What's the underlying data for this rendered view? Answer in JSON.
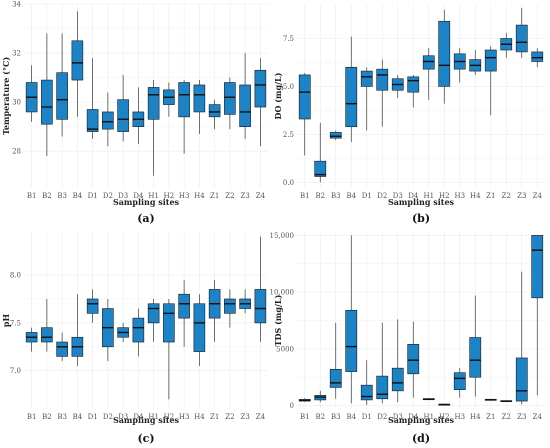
{
  "chart_data": [
    {
      "type": "box",
      "panel_label": "(a)",
      "xlabel": "Sampling sites",
      "ylabel": "Temperature (°C)",
      "ylim": [
        26.5,
        34
      ],
      "yticks": [
        28,
        30,
        32,
        34
      ],
      "ytick_labels": [
        "28",
        "30",
        "32",
        "34"
      ],
      "grid": true,
      "categories": [
        "B1",
        "B2",
        "B3",
        "B4",
        "D1",
        "D2",
        "D3",
        "D4",
        "H1",
        "H2",
        "H3",
        "H4",
        "Z1",
        "Z2",
        "Z3",
        "Z4"
      ],
      "boxes": [
        {
          "min": 29.2,
          "q1": 29.6,
          "median": 30.2,
          "q3": 30.8,
          "max": 31.5
        },
        {
          "min": 27.8,
          "q1": 29.1,
          "median": 29.8,
          "q3": 30.9,
          "max": 32.8
        },
        {
          "min": 28.6,
          "q1": 29.3,
          "median": 30.1,
          "q3": 31.2,
          "max": 32.8
        },
        {
          "min": 29.4,
          "q1": 30.9,
          "median": 31.6,
          "q3": 32.5,
          "max": 33.7
        },
        {
          "min": 28.5,
          "q1": 28.8,
          "median": 28.9,
          "q3": 29.7,
          "max": 31.8
        },
        {
          "min": 28.2,
          "q1": 28.9,
          "median": 29.2,
          "q3": 29.6,
          "max": 30.4
        },
        {
          "min": 28.4,
          "q1": 28.8,
          "median": 29.3,
          "q3": 30.1,
          "max": 31.1
        },
        {
          "min": 28.3,
          "q1": 29.0,
          "median": 29.3,
          "q3": 29.6,
          "max": 30.6
        },
        {
          "min": 27.0,
          "q1": 29.3,
          "median": 30.3,
          "q3": 30.6,
          "max": 30.9
        },
        {
          "min": 29.4,
          "q1": 29.9,
          "median": 30.2,
          "q3": 30.5,
          "max": 30.8
        },
        {
          "min": 27.9,
          "q1": 29.4,
          "median": 30.3,
          "q3": 30.8,
          "max": 30.9
        },
        {
          "min": 28.7,
          "q1": 29.6,
          "median": 30.3,
          "q3": 30.7,
          "max": 30.9
        },
        {
          "min": 28.9,
          "q1": 29.4,
          "median": 29.6,
          "q3": 29.9,
          "max": 30.1
        },
        {
          "min": 28.9,
          "q1": 29.5,
          "median": 30.2,
          "q3": 30.8,
          "max": 31.0
        },
        {
          "min": 28.5,
          "q1": 29.0,
          "median": 29.6,
          "q3": 30.7,
          "max": 32.0
        },
        {
          "min": 28.2,
          "q1": 29.8,
          "median": 30.7,
          "q3": 31.3,
          "max": 31.8
        }
      ]
    },
    {
      "type": "box",
      "panel_label": "(b)",
      "xlabel": "Sampling sites",
      "ylabel": "DO (mg/L)",
      "ylim": [
        -0.3,
        9.3
      ],
      "yticks": [
        0,
        2.5,
        5,
        7.5
      ],
      "ytick_labels": [
        "0.0",
        "2.5",
        "5.0",
        "7.5"
      ],
      "grid": true,
      "categories": [
        "B1",
        "B2",
        "B3",
        "B4",
        "D1",
        "D2",
        "D3",
        "D4",
        "H1",
        "H2",
        "H3",
        "H4",
        "Z1",
        "Z2",
        "Z3",
        "Z4"
      ],
      "boxes": [
        {
          "min": 1.4,
          "q1": 3.3,
          "median": 4.7,
          "q3": 5.6,
          "max": 5.7
        },
        {
          "min": 0.0,
          "q1": 0.3,
          "median": 0.4,
          "q3": 1.1,
          "max": 3.1
        },
        {
          "min": 2.2,
          "q1": 2.3,
          "median": 2.4,
          "q3": 2.6,
          "max": 2.7
        },
        {
          "min": 2.1,
          "q1": 2.9,
          "median": 4.1,
          "q3": 6.0,
          "max": 7.6
        },
        {
          "min": 2.7,
          "q1": 5.0,
          "median": 5.5,
          "q3": 5.8,
          "max": 6.0
        },
        {
          "min": 2.9,
          "q1": 4.8,
          "median": 5.6,
          "q3": 5.9,
          "max": 6.4
        },
        {
          "min": 4.4,
          "q1": 4.8,
          "median": 5.1,
          "q3": 5.4,
          "max": 5.6
        },
        {
          "min": 3.9,
          "q1": 4.7,
          "median": 5.3,
          "q3": 5.5,
          "max": 5.6
        },
        {
          "min": 4.3,
          "q1": 5.9,
          "median": 6.3,
          "q3": 6.6,
          "max": 7.0
        },
        {
          "min": 4.1,
          "q1": 5.0,
          "median": 6.1,
          "q3": 8.4,
          "max": 9.0
        },
        {
          "min": 5.2,
          "q1": 5.9,
          "median": 6.3,
          "q3": 6.7,
          "max": 7.0
        },
        {
          "min": 5.6,
          "q1": 5.8,
          "median": 6.1,
          "q3": 6.4,
          "max": 6.9
        },
        {
          "min": 3.5,
          "q1": 5.8,
          "median": 6.5,
          "q3": 6.9,
          "max": 7.1
        },
        {
          "min": 6.5,
          "q1": 6.9,
          "median": 7.2,
          "q3": 7.5,
          "max": 7.8
        },
        {
          "min": 6.5,
          "q1": 6.8,
          "median": 7.3,
          "q3": 8.2,
          "max": 9.1
        },
        {
          "min": 6.0,
          "q1": 6.3,
          "median": 6.5,
          "q3": 6.8,
          "max": 7.0
        }
      ]
    },
    {
      "type": "box",
      "panel_label": "(c)",
      "xlabel": "Sampling sites",
      "ylabel": "pH",
      "ylim": [
        6.6,
        8.45
      ],
      "yticks": [
        7.0,
        7.5,
        8.0
      ],
      "ytick_labels": [
        "7.0",
        "7.5",
        "8.0"
      ],
      "grid": true,
      "categories": [
        "B1",
        "B2",
        "B3",
        "B4",
        "D1",
        "D2",
        "D3",
        "D4",
        "H1",
        "H2",
        "H3",
        "H4",
        "Z1",
        "Z2",
        "Z3",
        "Z4"
      ],
      "boxes": [
        {
          "min": 7.2,
          "q1": 7.3,
          "median": 7.35,
          "q3": 7.4,
          "max": 7.45
        },
        {
          "min": 7.2,
          "q1": 7.3,
          "median": 7.35,
          "q3": 7.45,
          "max": 7.75
        },
        {
          "min": 7.1,
          "q1": 7.15,
          "median": 7.25,
          "q3": 7.3,
          "max": 7.4
        },
        {
          "min": 7.05,
          "q1": 7.15,
          "median": 7.25,
          "q3": 7.35,
          "max": 7.8
        },
        {
          "min": 7.5,
          "q1": 7.6,
          "median": 7.7,
          "q3": 7.75,
          "max": 7.85
        },
        {
          "min": 7.1,
          "q1": 7.25,
          "median": 7.45,
          "q3": 7.65,
          "max": 7.75
        },
        {
          "min": 7.3,
          "q1": 7.35,
          "median": 7.4,
          "q3": 7.45,
          "max": 7.5
        },
        {
          "min": 7.15,
          "q1": 7.3,
          "median": 7.45,
          "q3": 7.55,
          "max": 7.65
        },
        {
          "min": 7.3,
          "q1": 7.5,
          "median": 7.65,
          "q3": 7.7,
          "max": 7.75
        },
        {
          "min": 6.7,
          "q1": 7.3,
          "median": 7.6,
          "q3": 7.7,
          "max": 7.75
        },
        {
          "min": 7.25,
          "q1": 7.55,
          "median": 7.7,
          "q3": 7.8,
          "max": 7.95
        },
        {
          "min": 7.05,
          "q1": 7.2,
          "median": 7.5,
          "q3": 7.7,
          "max": 7.8
        },
        {
          "min": 7.3,
          "q1": 7.55,
          "median": 7.7,
          "q3": 7.85,
          "max": 7.95
        },
        {
          "min": 7.45,
          "q1": 7.6,
          "median": 7.7,
          "q3": 7.75,
          "max": 7.85
        },
        {
          "min": 7.6,
          "q1": 7.65,
          "median": 7.7,
          "q3": 7.75,
          "max": 7.85
        },
        {
          "min": 7.3,
          "q1": 7.5,
          "median": 7.65,
          "q3": 7.85,
          "max": 8.4
        }
      ]
    },
    {
      "type": "box",
      "panel_label": "(d)",
      "xlabel": "Sampling sites",
      "ylabel": "TDS (mg/L)",
      "ylim": [
        -300,
        15300
      ],
      "yticks": [
        0,
        5000,
        10000,
        15000
      ],
      "ytick_labels": [
        "0",
        "5000",
        "10,000",
        "15,000"
      ],
      "grid": true,
      "categories": [
        "B1",
        "B2",
        "B3",
        "B4",
        "D1",
        "D2",
        "D3",
        "D4",
        "H1",
        "H2",
        "H3",
        "H4",
        "Z1",
        "Z2",
        "Z3",
        "Z4"
      ],
      "boxes": [
        {
          "min": 350,
          "q1": 400,
          "median": 450,
          "q3": 550,
          "max": 650
        },
        {
          "min": 300,
          "q1": 500,
          "median": 750,
          "q3": 900,
          "max": 1300
        },
        {
          "min": 600,
          "q1": 1600,
          "median": 2000,
          "q3": 3200,
          "max": 7300
        },
        {
          "min": 200,
          "q1": 3000,
          "median": 5200,
          "q3": 8400,
          "max": 15000
        },
        {
          "min": 50,
          "q1": 500,
          "median": 800,
          "q3": 1800,
          "max": 4000
        },
        {
          "min": 200,
          "q1": 600,
          "median": 1000,
          "q3": 2600,
          "max": 7300
        },
        {
          "min": 300,
          "q1": 1300,
          "median": 2000,
          "q3": 3300,
          "max": 7600
        },
        {
          "min": 700,
          "q1": 2800,
          "median": 4000,
          "q3": 5400,
          "max": 7400
        },
        {
          "min": 500,
          "q1": 520,
          "median": 550,
          "q3": 620,
          "max": 650
        },
        {
          "min": 80,
          "q1": 90,
          "median": 100,
          "q3": 120,
          "max": 130
        },
        {
          "min": 700,
          "q1": 1400,
          "median": 2400,
          "q3": 2900,
          "max": 3300
        },
        {
          "min": 800,
          "q1": 2500,
          "median": 4000,
          "q3": 6000,
          "max": 9700
        },
        {
          "min": 450,
          "q1": 480,
          "median": 500,
          "q3": 560,
          "max": 600
        },
        {
          "min": 350,
          "q1": 380,
          "median": 400,
          "q3": 430,
          "max": 450
        },
        {
          "min": 100,
          "q1": 400,
          "median": 1300,
          "q3": 4200,
          "max": 11800
        },
        {
          "min": 900,
          "q1": 9500,
          "median": 13700,
          "q3": 15000,
          "max": 15000
        }
      ]
    }
  ],
  "colors": {
    "box_fill": "#1c83c6",
    "box_stroke": "#1a1a1a",
    "grid": "#ebebeb"
  }
}
